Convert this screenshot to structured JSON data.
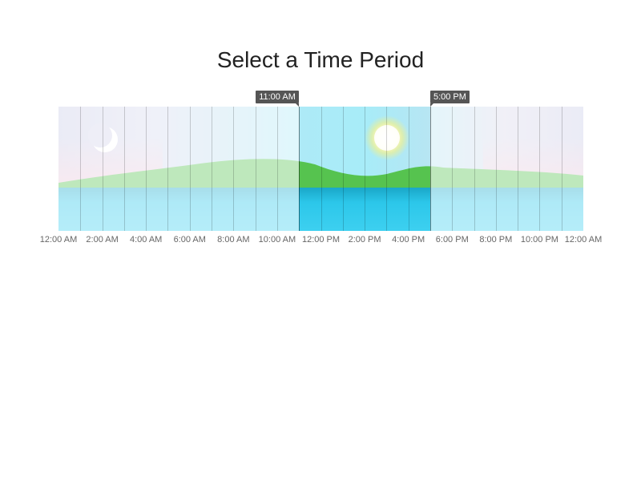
{
  "page": {
    "title": "Select a Time Period"
  },
  "slider": {
    "range_hours": [
      0,
      24
    ],
    "selection": {
      "start_hour": 11,
      "end_hour": 17,
      "start_label": "11:00 AM",
      "end_label": "5:00 PM"
    },
    "scene_icons": [
      "moon-icon",
      "sun-icon"
    ],
    "colors": {
      "day_sky": "#a9ecf7",
      "water": "#2cc7ea",
      "hills": "#56c34f",
      "label_bg": "#555555"
    }
  },
  "axis": {
    "ticks": [
      {
        "hour": 0,
        "label": "12:00 AM"
      },
      {
        "hour": 2,
        "label": "2:00 AM"
      },
      {
        "hour": 4,
        "label": "4:00 AM"
      },
      {
        "hour": 6,
        "label": "6:00 AM"
      },
      {
        "hour": 8,
        "label": "8:00 AM"
      },
      {
        "hour": 10,
        "label": "10:00 AM"
      },
      {
        "hour": 12,
        "label": "12:00 PM"
      },
      {
        "hour": 14,
        "label": "2:00 PM"
      },
      {
        "hour": 16,
        "label": "4:00 PM"
      },
      {
        "hour": 18,
        "label": "6:00 PM"
      },
      {
        "hour": 20,
        "label": "8:00 PM"
      },
      {
        "hour": 22,
        "label": "10:00 PM"
      },
      {
        "hour": 24,
        "label": "12:00 AM"
      }
    ]
  }
}
